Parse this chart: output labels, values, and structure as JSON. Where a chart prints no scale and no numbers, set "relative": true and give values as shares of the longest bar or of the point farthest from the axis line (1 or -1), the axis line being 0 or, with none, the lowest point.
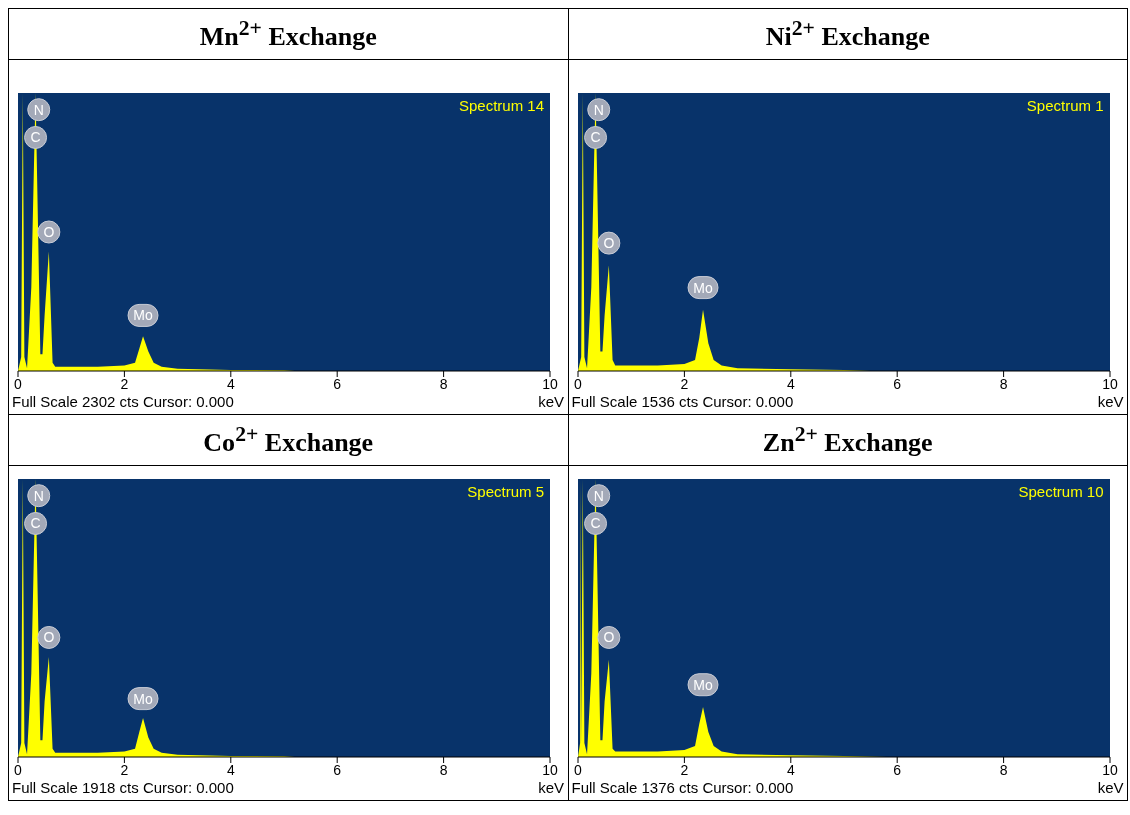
{
  "chart_data": [
    {
      "type": "area",
      "title": "Mn$^{2+}$ Exchange",
      "xlabel": "keV",
      "relative": true,
      "color": "#ffff00",
      "xlim": [
        0,
        10
      ],
      "xticks": [
        0,
        2,
        4,
        6,
        8,
        10
      ],
      "x": [
        0,
        0.06,
        0.09,
        0.12,
        0.17,
        0.25,
        0.33,
        0.42,
        0.46,
        0.5,
        0.58,
        0.65,
        0.7,
        1.0,
        1.5,
        2.0,
        2.2,
        2.28,
        2.35,
        2.45,
        2.55,
        2.7,
        3.0,
        4.0,
        5.0,
        5.2,
        10
      ],
      "values": [
        0,
        0.05,
        1,
        0.05,
        0.01,
        0.3,
        1,
        0.06,
        0.06,
        0.2,
        0.43,
        0.03,
        0.015,
        0.015,
        0.015,
        0.02,
        0.03,
        0.08,
        0.125,
        0.07,
        0.03,
        0.015,
        0.008,
        0.004,
        0.003,
        0,
        0
      ],
      "annotations": [
        "Spectrum 14",
        "Full Scale 2302 cts Cursor: 0.000",
        {
          "text": "N",
          "x": 0.39,
          "y": 0.94
        },
        {
          "text": "C",
          "x": 0.33,
          "y": 0.84
        },
        {
          "text": "O",
          "x": 0.58,
          "y": 0.5
        },
        {
          "text": "Mo",
          "x": 2.35,
          "y": 0.2
        }
      ]
    },
    {
      "type": "area",
      "title": "Ni$^{2+}$ Exchange",
      "xlabel": "keV",
      "relative": true,
      "color": "#ffff00",
      "xlim": [
        0,
        10
      ],
      "xticks": [
        0,
        2,
        4,
        6,
        8,
        10
      ],
      "x": [
        0,
        0.06,
        0.09,
        0.12,
        0.17,
        0.25,
        0.33,
        0.42,
        0.46,
        0.5,
        0.58,
        0.65,
        0.7,
        1.0,
        1.5,
        2.0,
        2.2,
        2.28,
        2.35,
        2.45,
        2.55,
        2.7,
        3.0,
        4.0,
        5.0,
        5.5,
        10
      ],
      "values": [
        0,
        0.05,
        1,
        0.05,
        0.01,
        0.3,
        1,
        0.07,
        0.07,
        0.2,
        0.38,
        0.04,
        0.02,
        0.02,
        0.02,
        0.025,
        0.04,
        0.12,
        0.22,
        0.1,
        0.04,
        0.02,
        0.01,
        0.006,
        0.004,
        0,
        0
      ],
      "annotations": [
        "Spectrum 1",
        "Full Scale 1536 cts Cursor: 0.000",
        {
          "text": "N",
          "x": 0.39,
          "y": 0.94
        },
        {
          "text": "C",
          "x": 0.33,
          "y": 0.84
        },
        {
          "text": "O",
          "x": 0.58,
          "y": 0.46
        },
        {
          "text": "Mo",
          "x": 2.35,
          "y": 0.3
        }
      ]
    },
    {
      "type": "area",
      "title": "Co$^{2+}$ Exchange",
      "xlabel": "keV",
      "relative": true,
      "color": "#ffff00",
      "xlim": [
        0,
        10
      ],
      "xticks": [
        0,
        2,
        4,
        6,
        8,
        10
      ],
      "x": [
        0,
        0.06,
        0.09,
        0.12,
        0.17,
        0.25,
        0.33,
        0.42,
        0.46,
        0.5,
        0.58,
        0.65,
        0.7,
        1.0,
        1.5,
        2.0,
        2.2,
        2.28,
        2.35,
        2.45,
        2.55,
        2.7,
        3.0,
        4.0,
        5.0,
        5.2,
        10
      ],
      "values": [
        0,
        0.05,
        1,
        0.05,
        0.01,
        0.3,
        1,
        0.06,
        0.06,
        0.2,
        0.36,
        0.03,
        0.015,
        0.015,
        0.015,
        0.02,
        0.03,
        0.09,
        0.14,
        0.07,
        0.03,
        0.015,
        0.008,
        0.004,
        0.003,
        0,
        0
      ],
      "annotations": [
        "Spectrum 5",
        "Full Scale 1918 cts Cursor: 0.000",
        {
          "text": "N",
          "x": 0.39,
          "y": 0.94
        },
        {
          "text": "C",
          "x": 0.33,
          "y": 0.84
        },
        {
          "text": "O",
          "x": 0.58,
          "y": 0.43
        },
        {
          "text": "Mo",
          "x": 2.35,
          "y": 0.21
        }
      ]
    },
    {
      "type": "area",
      "title": "Zn$^{2+}$ Exchange",
      "xlabel": "keV",
      "relative": true,
      "color": "#ffff00",
      "xlim": [
        0,
        10
      ],
      "xticks": [
        0,
        2,
        4,
        6,
        8,
        10
      ],
      "x": [
        0,
        0.04,
        0.05,
        0.06,
        0.09,
        0.12,
        0.17,
        0.25,
        0.33,
        0.42,
        0.46,
        0.5,
        0.58,
        0.65,
        0.7,
        1.0,
        1.5,
        2.0,
        2.2,
        2.28,
        2.35,
        2.45,
        2.55,
        2.7,
        3.0,
        4.0,
        5.0,
        5.8,
        10
      ],
      "values": [
        0,
        0.05,
        1,
        0.05,
        1,
        0.05,
        0.01,
        0.3,
        1,
        0.06,
        0.06,
        0.2,
        0.35,
        0.03,
        0.02,
        0.02,
        0.02,
        0.025,
        0.04,
        0.12,
        0.18,
        0.09,
        0.04,
        0.02,
        0.01,
        0.006,
        0.004,
        0,
        0
      ],
      "annotations": [
        "Spectrum 10",
        "Full Scale 1376 cts Cursor: 0.000",
        {
          "text": "N",
          "x": 0.39,
          "y": 0.94
        },
        {
          "text": "C",
          "x": 0.33,
          "y": 0.84
        },
        {
          "text": "O",
          "x": 0.58,
          "y": 0.43
        },
        {
          "text": "Mo",
          "x": 2.35,
          "y": 0.26
        }
      ]
    }
  ]
}
